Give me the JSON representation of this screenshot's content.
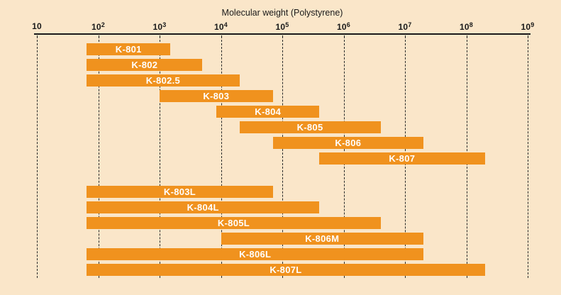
{
  "chart_data": {
    "type": "bar",
    "subtype": "horizontal-log-range-bars",
    "title": "Molecular weight (Polystyrene)",
    "x_axis": {
      "scale": "log10",
      "min": 10,
      "max": 1000000000,
      "tick_base": "10",
      "tick_exponents": [
        1,
        2,
        3,
        4,
        5,
        6,
        7,
        8,
        9
      ]
    },
    "grid": "vertical-dashed",
    "legend": "none",
    "colors": {
      "bar": "#F0921E",
      "background": "#FAE6C9",
      "axis": "#1a1a1a",
      "gridline": "#2b2b2b",
      "bar_label": "#ffffff"
    },
    "groups": [
      {
        "bars": [
          {
            "label": "K-801",
            "min": 65,
            "max": 1500
          },
          {
            "label": "K-802",
            "min": 65,
            "max": 5000
          },
          {
            "label": "K-802.5",
            "min": 65,
            "max": 20000
          },
          {
            "label": "K-803",
            "min": 1000,
            "max": 70000
          },
          {
            "label": "K-804",
            "min": 8500,
            "max": 400000
          },
          {
            "label": "K-805",
            "min": 20000,
            "max": 4000000
          },
          {
            "label": "K-806",
            "min": 70000,
            "max": 20000000
          },
          {
            "label": "K-807",
            "min": 400000,
            "max": 200000000
          }
        ]
      },
      {
        "bars": [
          {
            "label": "K-803L",
            "min": 65,
            "max": 70000
          },
          {
            "label": "K-804L",
            "min": 65,
            "max": 400000
          },
          {
            "label": "K-805L",
            "min": 65,
            "max": 4000000
          },
          {
            "label": "K-806M",
            "min": 10000,
            "max": 20000000
          },
          {
            "label": "K-806L",
            "min": 65,
            "max": 20000000
          },
          {
            "label": "K-807L",
            "min": 65,
            "max": 200000000
          }
        ]
      }
    ]
  }
}
